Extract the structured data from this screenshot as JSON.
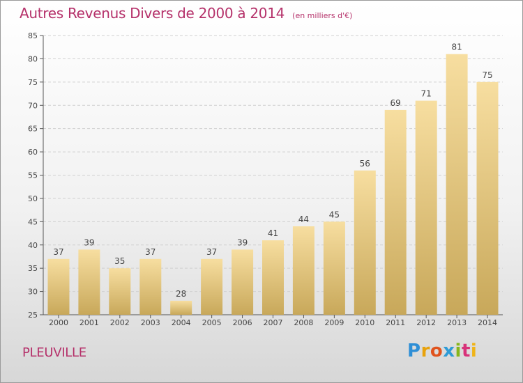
{
  "header": {
    "title": "Autres Revenus Divers de 2000 à 2014",
    "unit": "(en milliers d'€)"
  },
  "footer": {
    "commune": "PLEUVILLE",
    "logo": {
      "letters": [
        "P",
        "r",
        "o",
        "x",
        "i",
        "t",
        "i"
      ],
      "colors": [
        "#2f8fd6",
        "#e8a20c",
        "#e0531d",
        "#2e9bd6",
        "#86b61c",
        "#d8327a",
        "#f0b417"
      ]
    }
  },
  "colors": {
    "accent": "#b5316a",
    "bar_light": "#f7dea0",
    "bar_dark": "#c8a85a",
    "grid": "#cfcfcf"
  },
  "chart_data": {
    "type": "bar",
    "title": "Autres Revenus Divers de 2000 à 2014",
    "categories": [
      "2000",
      "2001",
      "2002",
      "2003",
      "2004",
      "2005",
      "2006",
      "2007",
      "2008",
      "2009",
      "2010",
      "2011",
      "2012",
      "2013",
      "2014"
    ],
    "values": [
      37,
      39,
      35,
      37,
      28,
      37,
      39,
      41,
      44,
      45,
      56,
      69,
      71,
      81,
      75
    ],
    "xlabel": "",
    "ylabel": "",
    "ylim": [
      25,
      85
    ],
    "yticks": [
      25,
      30,
      35,
      40,
      45,
      50,
      55,
      60,
      65,
      70,
      75,
      80,
      85
    ],
    "grid": true,
    "legend": "none"
  }
}
